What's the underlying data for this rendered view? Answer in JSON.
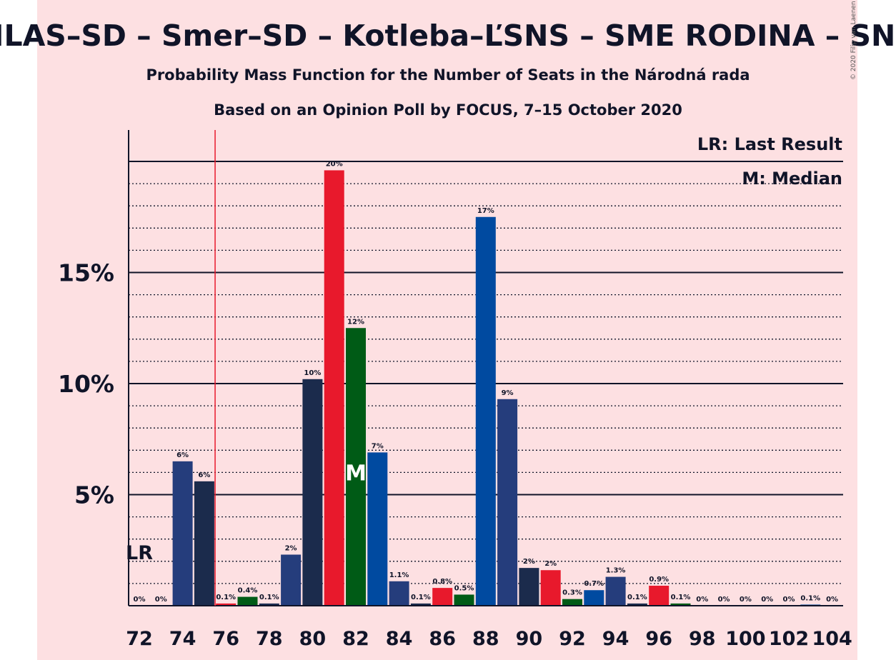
{
  "title": "HLAS–SD – Smer–SD – Kotleba–ĽSNS – SME RODINA – SNS",
  "subtitle_1": "Probability Mass Function for the Number of Seats in the Národná rada",
  "subtitle_2": "Based on an Opinion Poll by FOCUS, 7–15 October 2020",
  "legend": {
    "last_result": "LR: Last Result",
    "median": "M: Median"
  },
  "lr_marker": "LR",
  "median_marker": "M",
  "credit": "© 2020 Filip van Laenen",
  "colors": {
    "navy": "#1d2d52",
    "dark_navy": "#1b2b4c",
    "red": "#e8192c",
    "green": "#005b16",
    "blue": "#004aa0",
    "indigo": "#253d7c",
    "background": "#fde0e2",
    "lr_line": "#e8192c"
  },
  "chart_data": {
    "type": "bar",
    "xlabel": "",
    "ylabel": "",
    "ylim": [
      0,
      21.3
    ],
    "yticks": [
      5,
      10,
      15
    ],
    "ytick_labels": [
      "5%",
      "10%",
      "15%"
    ],
    "xtick_labels": [
      "72",
      "74",
      "76",
      "78",
      "80",
      "82",
      "84",
      "86",
      "88",
      "90",
      "92",
      "94",
      "96",
      "98",
      "100",
      "102",
      "104"
    ],
    "last_result_seat": 75.5,
    "median_seat": 82,
    "bars": [
      {
        "seat": 72,
        "value": 0,
        "label": "0%",
        "color": "navy"
      },
      {
        "seat": 73,
        "value": 0,
        "label": "0%",
        "color": "navy"
      },
      {
        "seat": 74,
        "value": 6.5,
        "label": "6%",
        "color": "indigo"
      },
      {
        "seat": 75,
        "value": 5.6,
        "label": "6%",
        "color": "dark_navy"
      },
      {
        "seat": 76,
        "value": 0.1,
        "label": "0.1%",
        "color": "red"
      },
      {
        "seat": 77,
        "value": 0.4,
        "label": "0.4%",
        "color": "green"
      },
      {
        "seat": 78,
        "value": 0.1,
        "label": "0.1%",
        "color": "navy"
      },
      {
        "seat": 79,
        "value": 2.3,
        "label": "2%",
        "color": "indigo"
      },
      {
        "seat": 80,
        "value": 10.2,
        "label": "10%",
        "color": "dark_navy"
      },
      {
        "seat": 81,
        "value": 19.6,
        "label": "20%",
        "color": "red"
      },
      {
        "seat": 82,
        "value": 12.5,
        "label": "12%",
        "color": "green"
      },
      {
        "seat": 83,
        "value": 6.9,
        "label": "7%",
        "color": "blue"
      },
      {
        "seat": 84,
        "value": 1.1,
        "label": "1.1%",
        "color": "indigo"
      },
      {
        "seat": 85,
        "value": 0.1,
        "label": "0.1%",
        "color": "dark_navy"
      },
      {
        "seat": 86,
        "value": 0.8,
        "label": "0.8%",
        "color": "red"
      },
      {
        "seat": 87,
        "value": 0.5,
        "label": "0.5%",
        "color": "green"
      },
      {
        "seat": 88,
        "value": 17.5,
        "label": "17%",
        "color": "blue"
      },
      {
        "seat": 89,
        "value": 9.3,
        "label": "9%",
        "color": "indigo"
      },
      {
        "seat": 90,
        "value": 1.7,
        "label": "2%",
        "color": "dark_navy"
      },
      {
        "seat": 91,
        "value": 1.6,
        "label": "2%",
        "color": "red"
      },
      {
        "seat": 92,
        "value": 0.3,
        "label": "0.3%",
        "color": "green"
      },
      {
        "seat": 93,
        "value": 0.7,
        "label": "0.7%",
        "color": "blue"
      },
      {
        "seat": 94,
        "value": 1.3,
        "label": "1.3%",
        "color": "indigo"
      },
      {
        "seat": 95,
        "value": 0.1,
        "label": "0.1%",
        "color": "dark_navy"
      },
      {
        "seat": 96,
        "value": 0.9,
        "label": "0.9%",
        "color": "red"
      },
      {
        "seat": 97,
        "value": 0.1,
        "label": "0.1%",
        "color": "green"
      },
      {
        "seat": 98,
        "value": 0,
        "label": "0%",
        "color": "blue"
      },
      {
        "seat": 99,
        "value": 0,
        "label": "0%",
        "color": "indigo"
      },
      {
        "seat": 100,
        "value": 0,
        "label": "0%",
        "color": "dark_navy"
      },
      {
        "seat": 101,
        "value": 0,
        "label": "0%",
        "color": "red"
      },
      {
        "seat": 102,
        "value": 0,
        "label": "0%",
        "color": "green"
      },
      {
        "seat": 103,
        "value": 0.05,
        "label": "0.1%",
        "color": "blue"
      },
      {
        "seat": 104,
        "value": 0,
        "label": "0%",
        "color": "indigo"
      }
    ]
  }
}
